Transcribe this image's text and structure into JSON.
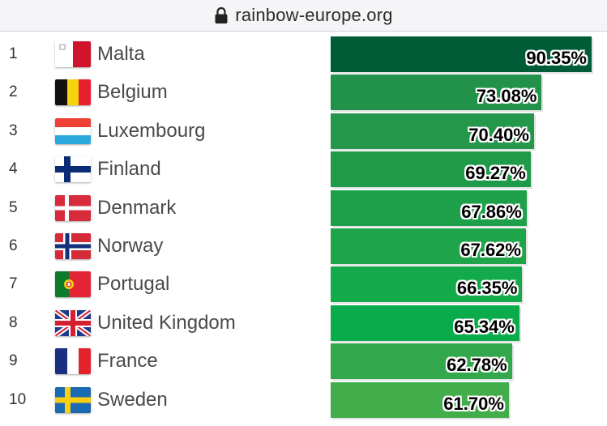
{
  "browser": {
    "url": "rainbow-europe.org"
  },
  "chart_data": {
    "type": "bar",
    "orientation": "horizontal",
    "title": "",
    "xlabel": "",
    "ylabel": "",
    "xlim": [
      0,
      100
    ],
    "grid": false,
    "legend": "none",
    "unit": "%",
    "rows": [
      {
        "rank": "1",
        "country": "Malta",
        "value": 90.35,
        "label": "90.35%",
        "flag": "malta-flag-icon"
      },
      {
        "rank": "2",
        "country": "Belgium",
        "value": 73.08,
        "label": "73.08%",
        "flag": "belgium-flag-icon"
      },
      {
        "rank": "3",
        "country": "Luxembourg",
        "value": 70.4,
        "label": "70.40%",
        "flag": "luxembourg-flag-icon"
      },
      {
        "rank": "4",
        "country": "Finland",
        "value": 69.27,
        "label": "69.27%",
        "flag": "finland-flag-icon"
      },
      {
        "rank": "5",
        "country": "Denmark",
        "value": 67.86,
        "label": "67.86%",
        "flag": "denmark-flag-icon"
      },
      {
        "rank": "6",
        "country": "Norway",
        "value": 67.62,
        "label": "67.62%",
        "flag": "norway-flag-icon"
      },
      {
        "rank": "7",
        "country": "Portugal",
        "value": 66.35,
        "label": "66.35%",
        "flag": "portugal-flag-icon"
      },
      {
        "rank": "8",
        "country": "United Kingdom",
        "value": 65.34,
        "label": "65.34%",
        "flag": "uk-flag-icon"
      },
      {
        "rank": "9",
        "country": "France",
        "value": 62.78,
        "label": "62.78%",
        "flag": "france-flag-icon"
      },
      {
        "rank": "10",
        "country": "Sweden",
        "value": 61.7,
        "label": "61.70%",
        "flag": "sweden-flag-icon"
      }
    ],
    "bar_colors": [
      "#005c36",
      "#22924a",
      "#24974b",
      "#1e9a49",
      "#1ea04a",
      "#1ea54a",
      "#12aa4a",
      "#0aab4a",
      "#33a74b",
      "#43ad4b"
    ]
  }
}
